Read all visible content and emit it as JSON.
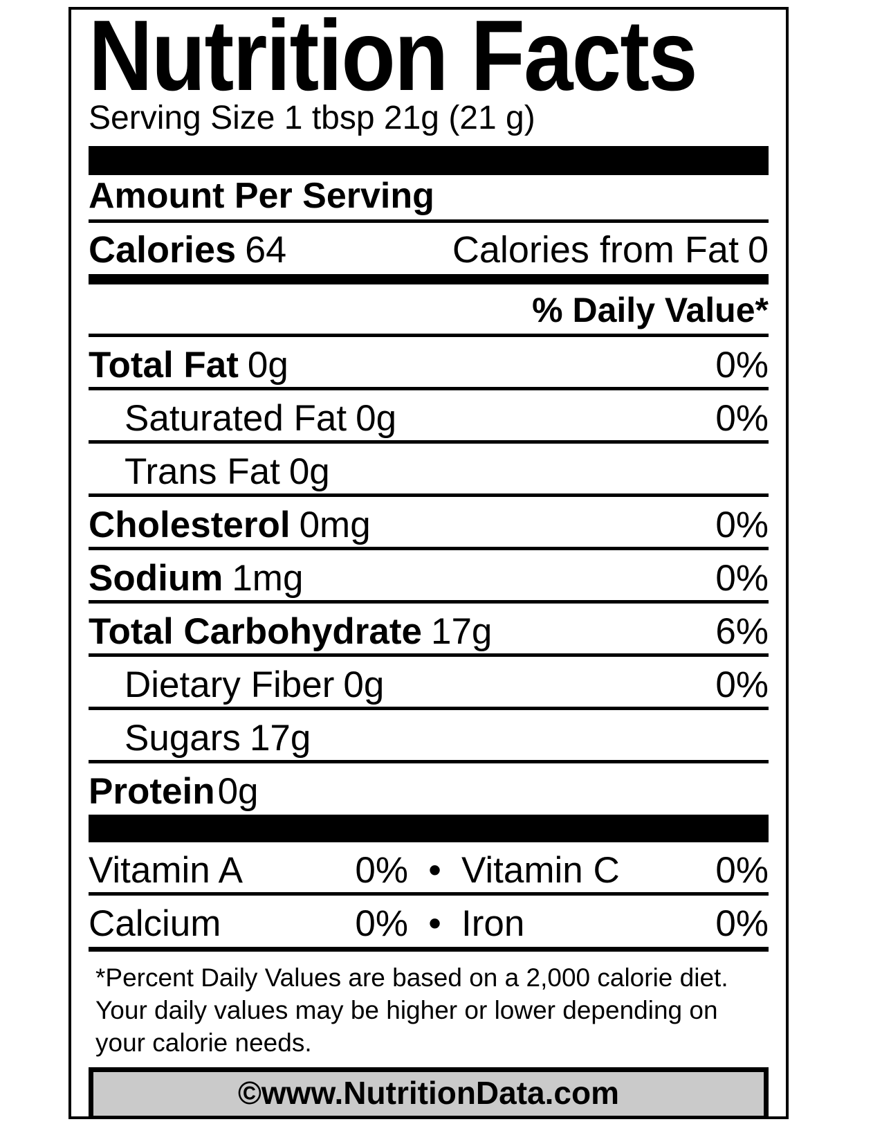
{
  "label": {
    "title": "Nutrition Facts",
    "serving_size": "Serving Size 1 tbsp 21g (21 g)",
    "amount_per_serving": "Amount Per Serving",
    "calories": {
      "label": "Calories",
      "value": "64",
      "from_fat_label": "Calories from Fat",
      "from_fat_value": "0"
    },
    "daily_value_header": "% Daily Value*",
    "nutrients": [
      {
        "name": "Total Fat",
        "amount": "0g",
        "dv": "0%"
      },
      {
        "name": "Saturated Fat",
        "amount": "0g",
        "dv": "0%"
      },
      {
        "name": "Trans Fat",
        "amount": "0g",
        "dv": ""
      },
      {
        "name": "Cholesterol",
        "amount": "0mg",
        "dv": "0%"
      },
      {
        "name": "Sodium",
        "amount": "1mg",
        "dv": "0%"
      },
      {
        "name": "Total Carbohydrate",
        "amount": "17g",
        "dv": "6%"
      },
      {
        "name": "Dietary Fiber",
        "amount": "0g",
        "dv": "0%"
      },
      {
        "name": "Sugars",
        "amount": "17g",
        "dv": ""
      },
      {
        "name": "Protein",
        "amount": "0g",
        "dv": ""
      }
    ],
    "bullet": "•",
    "micronutrients": [
      {
        "left_name": "Vitamin A",
        "left_value": "0%",
        "right_name": "Vitamin C",
        "right_value": "0%"
      },
      {
        "left_name": "Calcium",
        "left_value": "0%",
        "right_name": "Iron",
        "right_value": "0%"
      }
    ],
    "footnote": "*Percent Daily Values are based on a 2,000 calorie diet.\nYour daily values may be higher or lower depending on\nyour calorie needs.",
    "copyright": "©www.NutritionData.com",
    "colors": {
      "ink": "#000000",
      "background": "#ffffff",
      "banner_fill": "#cacaca"
    }
  }
}
